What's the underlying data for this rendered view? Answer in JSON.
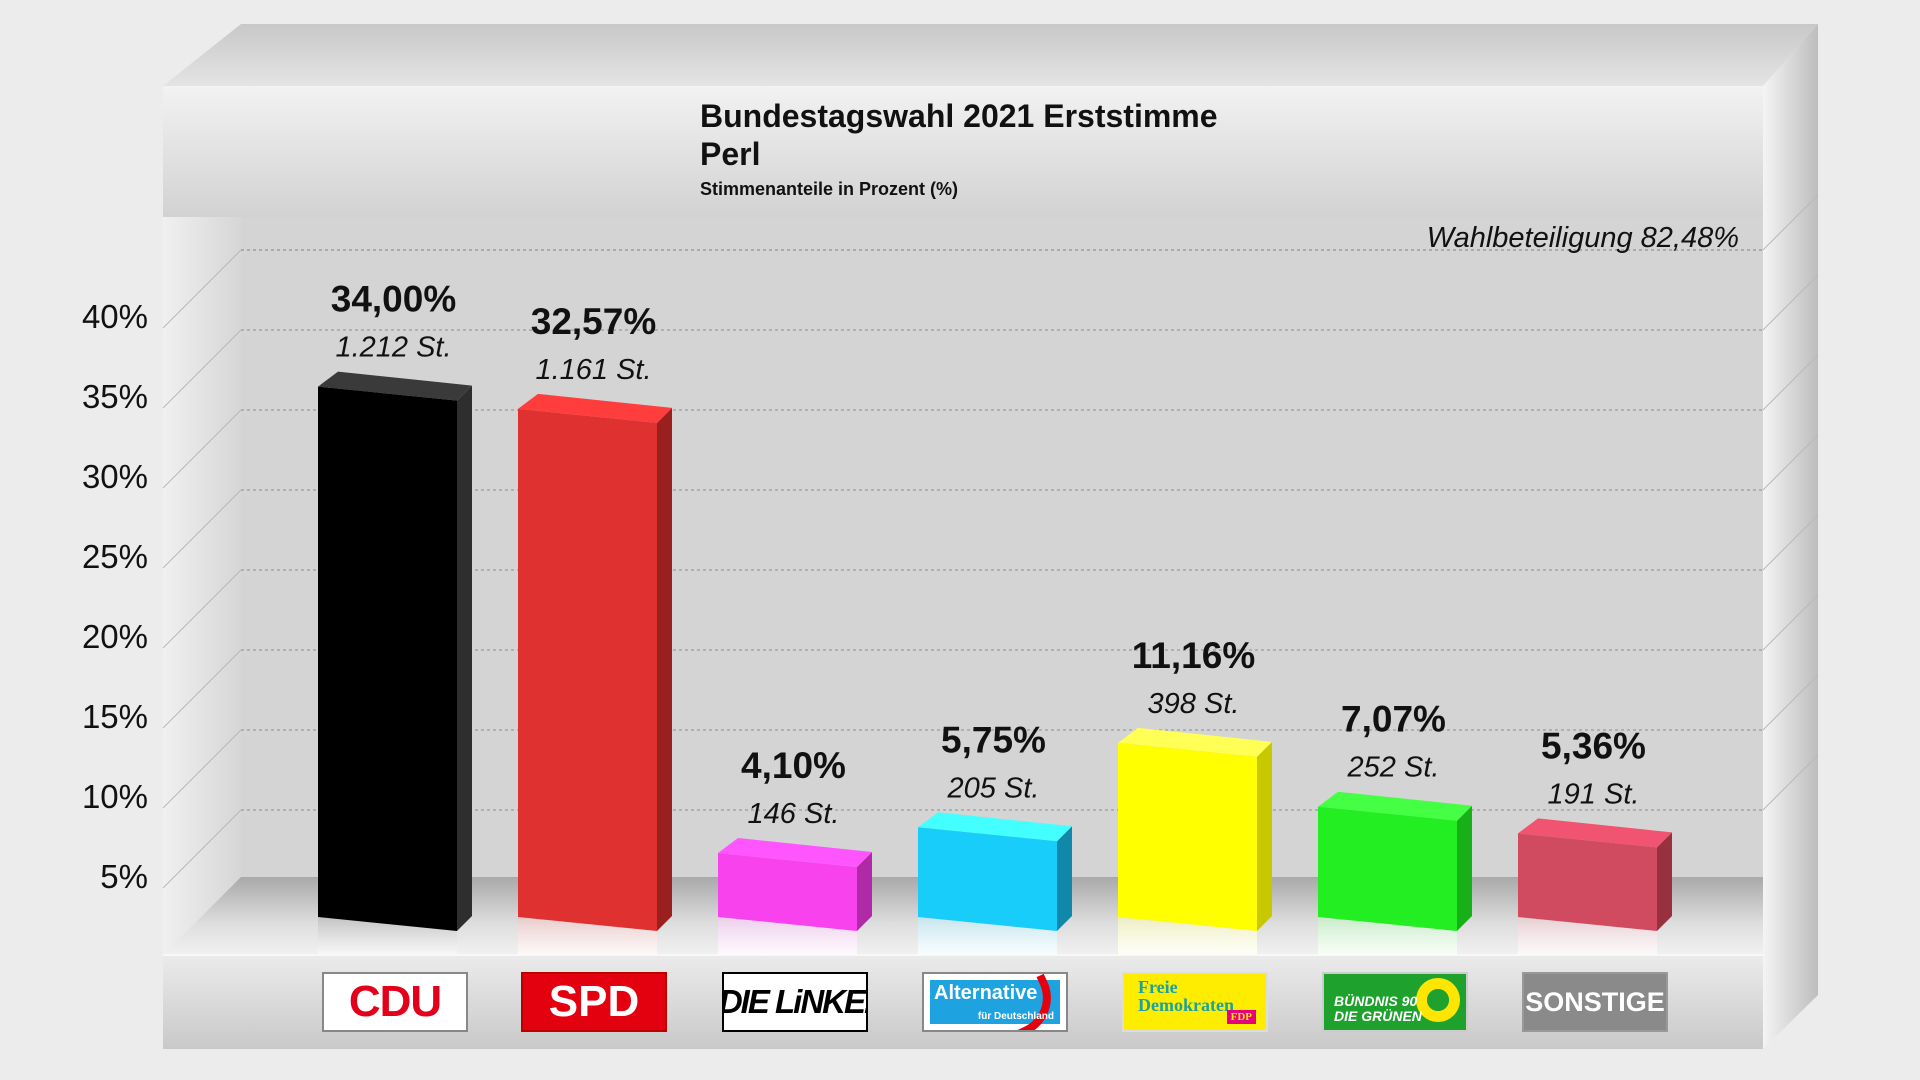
{
  "title": {
    "line1": "Bundestagswahl 2021 Erststimme",
    "line2": "Perl",
    "subtitle": "Stimmenanteile in Prozent (%)"
  },
  "turnout": "Wahlbeteiligung 82,48%",
  "logos": {
    "cdu": "CDU",
    "spd": "SPD",
    "linke": "DIE LiNKE.",
    "afd_a": "Alternative",
    "afd_b": "für Deutschland",
    "fdp_a": "Freie Demokraten",
    "fdp_b": "FDP",
    "gruene_a": "BÜNDNIS 90",
    "gruene_b": "DIE GRÜNEN",
    "sonst": "SONSTIGE"
  },
  "chart_data": {
    "type": "bar",
    "title": "Bundestagswahl 2021 Erststimme Perl",
    "subtitle": "Stimmenanteile in Prozent (%)",
    "categories": [
      "CDU",
      "SPD",
      "DIE LINKE",
      "AfD",
      "FDP",
      "GRÜNE",
      "SONSTIGE"
    ],
    "values": [
      34.0,
      32.57,
      4.1,
      5.75,
      11.16,
      7.07,
      5.36
    ],
    "value_labels": [
      "34,00%",
      "32,57%",
      "4,10%",
      "5,75%",
      "11,16%",
      "7,07%",
      "5,36%"
    ],
    "votes_labels": [
      "1.212 St.",
      "1.161 St.",
      "146 St.",
      "205 St.",
      "398 St.",
      "252 St.",
      "191 St."
    ],
    "colors": [
      {
        "front": "#000000",
        "top": "#3a3a3a",
        "side": "#2e2e2e"
      },
      {
        "front": "#e03131",
        "top": "#ff3d3d",
        "side": "#9a2020"
      },
      {
        "front": "#f742ee",
        "top": "#ff55ff",
        "side": "#b02aa8"
      },
      {
        "front": "#19cdfb",
        "top": "#44ffff",
        "side": "#1088aa"
      },
      {
        "front": "#ffff00",
        "top": "#ffff55",
        "side": "#c8c800"
      },
      {
        "front": "#22ee22",
        "top": "#44ff44",
        "side": "#18b018"
      },
      {
        "front": "#d04a60",
        "top": "#f05470",
        "side": "#993040"
      }
    ],
    "ylim": [
      0,
      45
    ],
    "yticks": [
      5,
      10,
      15,
      20,
      25,
      30,
      35,
      40
    ],
    "ytick_labels": [
      "5%",
      "10%",
      "15%",
      "20%",
      "25%",
      "30%",
      "35%",
      "40%"
    ],
    "grid": true,
    "xlabel": "",
    "ylabel": ""
  }
}
